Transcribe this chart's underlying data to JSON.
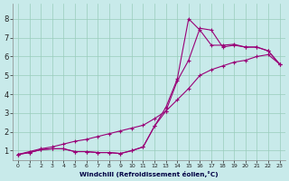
{
  "xlabel": "Windchill (Refroidissement éolien,°C)",
  "background_color": "#c8eaea",
  "line_color": "#990077",
  "grid_color": "#99ccbb",
  "xlim": [
    -0.5,
    23.5
  ],
  "ylim": [
    0.5,
    8.8
  ],
  "xticks": [
    0,
    1,
    2,
    3,
    4,
    5,
    6,
    7,
    8,
    9,
    10,
    11,
    12,
    13,
    14,
    15,
    16,
    17,
    18,
    19,
    20,
    21,
    22,
    23
  ],
  "yticks": [
    1,
    2,
    3,
    4,
    5,
    6,
    7,
    8
  ],
  "line_diagonal_x": [
    0,
    1,
    2,
    3,
    4,
    5,
    6,
    7,
    8,
    9,
    10,
    11,
    12,
    13,
    14,
    15,
    16,
    17,
    18,
    19,
    20,
    21,
    22,
    23
  ],
  "line_diagonal_y": [
    0.8,
    0.95,
    1.1,
    1.2,
    1.35,
    1.5,
    1.6,
    1.75,
    1.9,
    2.05,
    2.2,
    2.35,
    2.7,
    3.1,
    3.7,
    4.3,
    5.0,
    5.3,
    5.5,
    5.7,
    5.8,
    6.0,
    6.1,
    5.6
  ],
  "line_main_x": [
    0,
    1,
    2,
    3,
    4,
    5,
    6,
    7,
    8,
    9,
    10,
    11,
    12,
    13,
    14,
    15,
    16,
    17,
    18,
    19,
    20,
    21,
    22,
    23
  ],
  "line_main_y": [
    0.8,
    0.9,
    1.05,
    1.1,
    1.1,
    0.95,
    0.95,
    0.9,
    0.9,
    0.85,
    1.0,
    1.2,
    2.3,
    3.3,
    4.8,
    8.0,
    7.4,
    6.6,
    6.6,
    6.65,
    6.5,
    6.5,
    6.3,
    5.6
  ],
  "line_alt_x": [
    0,
    1,
    2,
    3,
    4,
    5,
    6,
    7,
    8,
    9,
    10,
    11,
    12,
    13,
    14,
    15,
    16,
    17,
    18,
    19,
    20,
    21,
    22,
    23
  ],
  "line_alt_y": [
    0.8,
    0.9,
    1.05,
    1.1,
    1.1,
    0.95,
    0.95,
    0.9,
    0.9,
    0.85,
    1.0,
    1.2,
    2.3,
    3.1,
    4.7,
    5.8,
    7.5,
    7.4,
    6.5,
    6.6,
    6.5,
    6.5,
    6.3,
    5.6
  ]
}
